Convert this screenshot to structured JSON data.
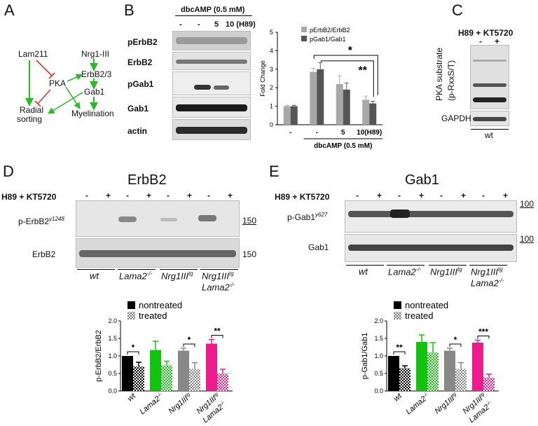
{
  "panels": {
    "A": "A",
    "B": "B",
    "C": "C",
    "D": "D",
    "E": "E"
  },
  "panelA": {
    "nodes": {
      "lam211": "Lam211",
      "nrg1": "Nrg1-III",
      "pka": "PKA",
      "erbb23": "ErbB2/3",
      "gab1": "Gab1",
      "radial1": "Radial",
      "radial2": "sorting",
      "myelination": "Myelination"
    }
  },
  "panelB": {
    "treatment_title": "dbcAMP (0.5 mM)",
    "lane_labels": [
      "-",
      "-",
      "5",
      "10 (H89)"
    ],
    "blot_labels": [
      "pErbB2",
      "ErbB2",
      "pGab1",
      "Gab1",
      "actin"
    ],
    "chart_axis_bottom": "dbcAMP (0.5 mM)"
  },
  "panelC": {
    "title": "H89 + KT5720",
    "lanes": [
      "-",
      "+"
    ],
    "ylabel1": "PKA substrate",
    "ylabel2": "(p-RxxS/T)",
    "gapdh": "GAPDH",
    "genotype": "wt"
  },
  "panelD": {
    "title": "ErbB2",
    "treat_label": "H89 + KT5720",
    "lanes": [
      "-",
      "+",
      "-",
      "+",
      "-",
      "+",
      "-",
      "+"
    ],
    "blot1": "p-ErbB2",
    "blot1_sup": "y1248",
    "blot2": "ErbB2",
    "mw1": "150",
    "mw2": "150",
    "genotypes": [
      "wt",
      "Lama2",
      "Nrg1III",
      "Nrg1III"
    ],
    "sup_ko": "-/-",
    "sup_tg": "tg",
    "lama2_sub": "Lama2",
    "legend_nontreated": "nontreated",
    "legend_treated": "treated"
  },
  "panelE": {
    "title": "Gab1",
    "treat_label": "H89 + KT5720",
    "lanes": [
      "-",
      "+",
      "-",
      "+",
      "-",
      "+",
      "-",
      "+"
    ],
    "blot1": "p-Gab1",
    "blot1_sup": "y627",
    "blot2": "Gab1",
    "mw1": "100",
    "mw2": "100",
    "genotypes": [
      "wt",
      "Lama2",
      "Nrg1III",
      "Nrg1III"
    ],
    "sup_ko": "-/-",
    "sup_tg": "tg",
    "lama2_sub": "Lama2",
    "legend_nontreated": "nontreated",
    "legend_treated": "treated"
  },
  "chart_data": [
    {
      "type": "bar",
      "title": "",
      "ylabel": "Fold Change",
      "xlabel": "dbcAMP (0.5 mM)",
      "categories": [
        "-",
        "-",
        "5",
        "10(H89)"
      ],
      "series": [
        {
          "name": "pErbB2/ErbB2",
          "values": [
            1.0,
            2.85,
            2.2,
            1.35
          ],
          "errors": [
            0.05,
            0.2,
            0.45,
            0.2
          ]
        },
        {
          "name": "pGab1/Gab1",
          "values": [
            1.0,
            3.0,
            1.9,
            1.15
          ],
          "errors": [
            0.05,
            0.35,
            0.35,
            0.12
          ]
        }
      ],
      "ylim": [
        0,
        5
      ],
      "yticks": [
        "0",
        "1",
        "2",
        "3",
        "4",
        "5"
      ],
      "colors": [
        "#a8a8a8",
        "#555555"
      ],
      "significance": [
        "*",
        "**"
      ]
    },
    {
      "type": "bar",
      "title": "",
      "ylabel": "p-ErbB2/ErbB2",
      "categories": [
        "wt",
        "Lama2",
        "Nrg1III",
        "Nrg1III Lama2"
      ],
      "series": [
        {
          "name": "nontreated",
          "values": [
            1.0,
            1.17,
            1.15,
            1.35
          ],
          "errors": [
            0.0,
            0.25,
            0.07,
            0.12
          ]
        },
        {
          "name": "treated",
          "values": [
            0.7,
            0.73,
            0.63,
            0.5
          ],
          "errors": [
            0.12,
            0.12,
            0.18,
            0.12
          ]
        }
      ],
      "ylim": [
        0,
        2.0
      ],
      "yticks": [
        "0.0",
        "0.5",
        "1.0",
        "1.5",
        "2.0"
      ],
      "colors": [
        "#000000",
        "#12c40f",
        "#888888",
        "#ee1b8c"
      ],
      "significance": [
        "*",
        "",
        "*",
        "**"
      ]
    },
    {
      "type": "bar",
      "title": "",
      "ylabel": "p-Gab1/Gab1",
      "categories": [
        "wt",
        "Lama2",
        "Nrg1III",
        "Nrg1III Lama2"
      ],
      "series": [
        {
          "name": "nontreated",
          "values": [
            1.0,
            1.4,
            1.15,
            1.38
          ],
          "errors": [
            0.0,
            0.2,
            0.07,
            0.07
          ]
        },
        {
          "name": "treated",
          "values": [
            0.65,
            1.1,
            0.63,
            0.38
          ],
          "errors": [
            0.07,
            0.28,
            0.18,
            0.1
          ]
        }
      ],
      "ylim": [
        0,
        2.0
      ],
      "yticks": [
        "0.0",
        "0.5",
        "1.0",
        "1.5",
        "2.0"
      ],
      "colors": [
        "#000000",
        "#12c40f",
        "#888888",
        "#ee1b8c"
      ],
      "significance": [
        "**",
        "",
        "*",
        "***"
      ]
    }
  ]
}
